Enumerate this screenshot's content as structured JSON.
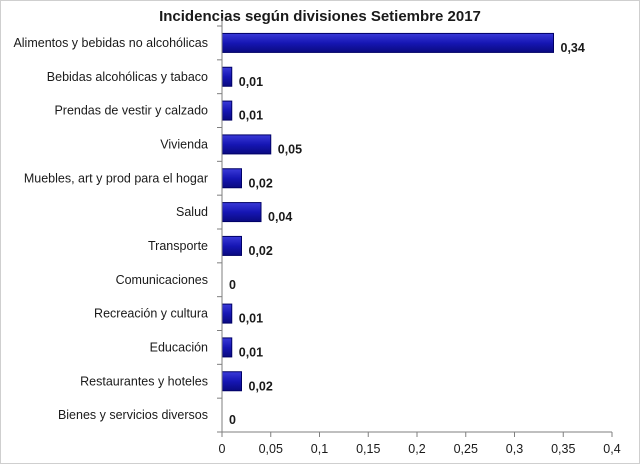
{
  "chart_data": {
    "type": "bar",
    "orientation": "horizontal",
    "title": "Incidencias según divisiones Setiembre 2017",
    "xlabel": "",
    "ylabel": "",
    "categories": [
      "Alimentos y bebidas no alcohólicas",
      "Bebidas alcohólicas y tabaco",
      "Prendas de vestir y calzado",
      "Vivienda",
      "Muebles, art y prod para el hogar",
      "Salud",
      "Transporte",
      "Comunicaciones",
      "Recreación y cultura",
      "Educación",
      "Restaurantes y hoteles",
      "Bienes y servicios diversos"
    ],
    "values": [
      0.34,
      0.01,
      0.01,
      0.05,
      0.02,
      0.04,
      0.02,
      0,
      0.01,
      0.01,
      0.02,
      0
    ],
    "value_labels": [
      "0,34",
      "0,01",
      "0,01",
      "0,05",
      "0,02",
      "0,04",
      "0,02",
      "0",
      "0,01",
      "0,01",
      "0,02",
      "0"
    ],
    "xlim": [
      0,
      0.4
    ],
    "xticks": [
      0,
      0.05,
      0.1,
      0.15,
      0.2,
      0.25,
      0.3,
      0.35,
      0.4
    ],
    "xtick_labels": [
      "0",
      "0,05",
      "0,1",
      "0,15",
      "0,2",
      "0,25",
      "0,3",
      "0,35",
      "0,4"
    ],
    "grid": false,
    "legend": "none",
    "bar_color": "#1616b4",
    "bar_edge_color": "#000066"
  }
}
